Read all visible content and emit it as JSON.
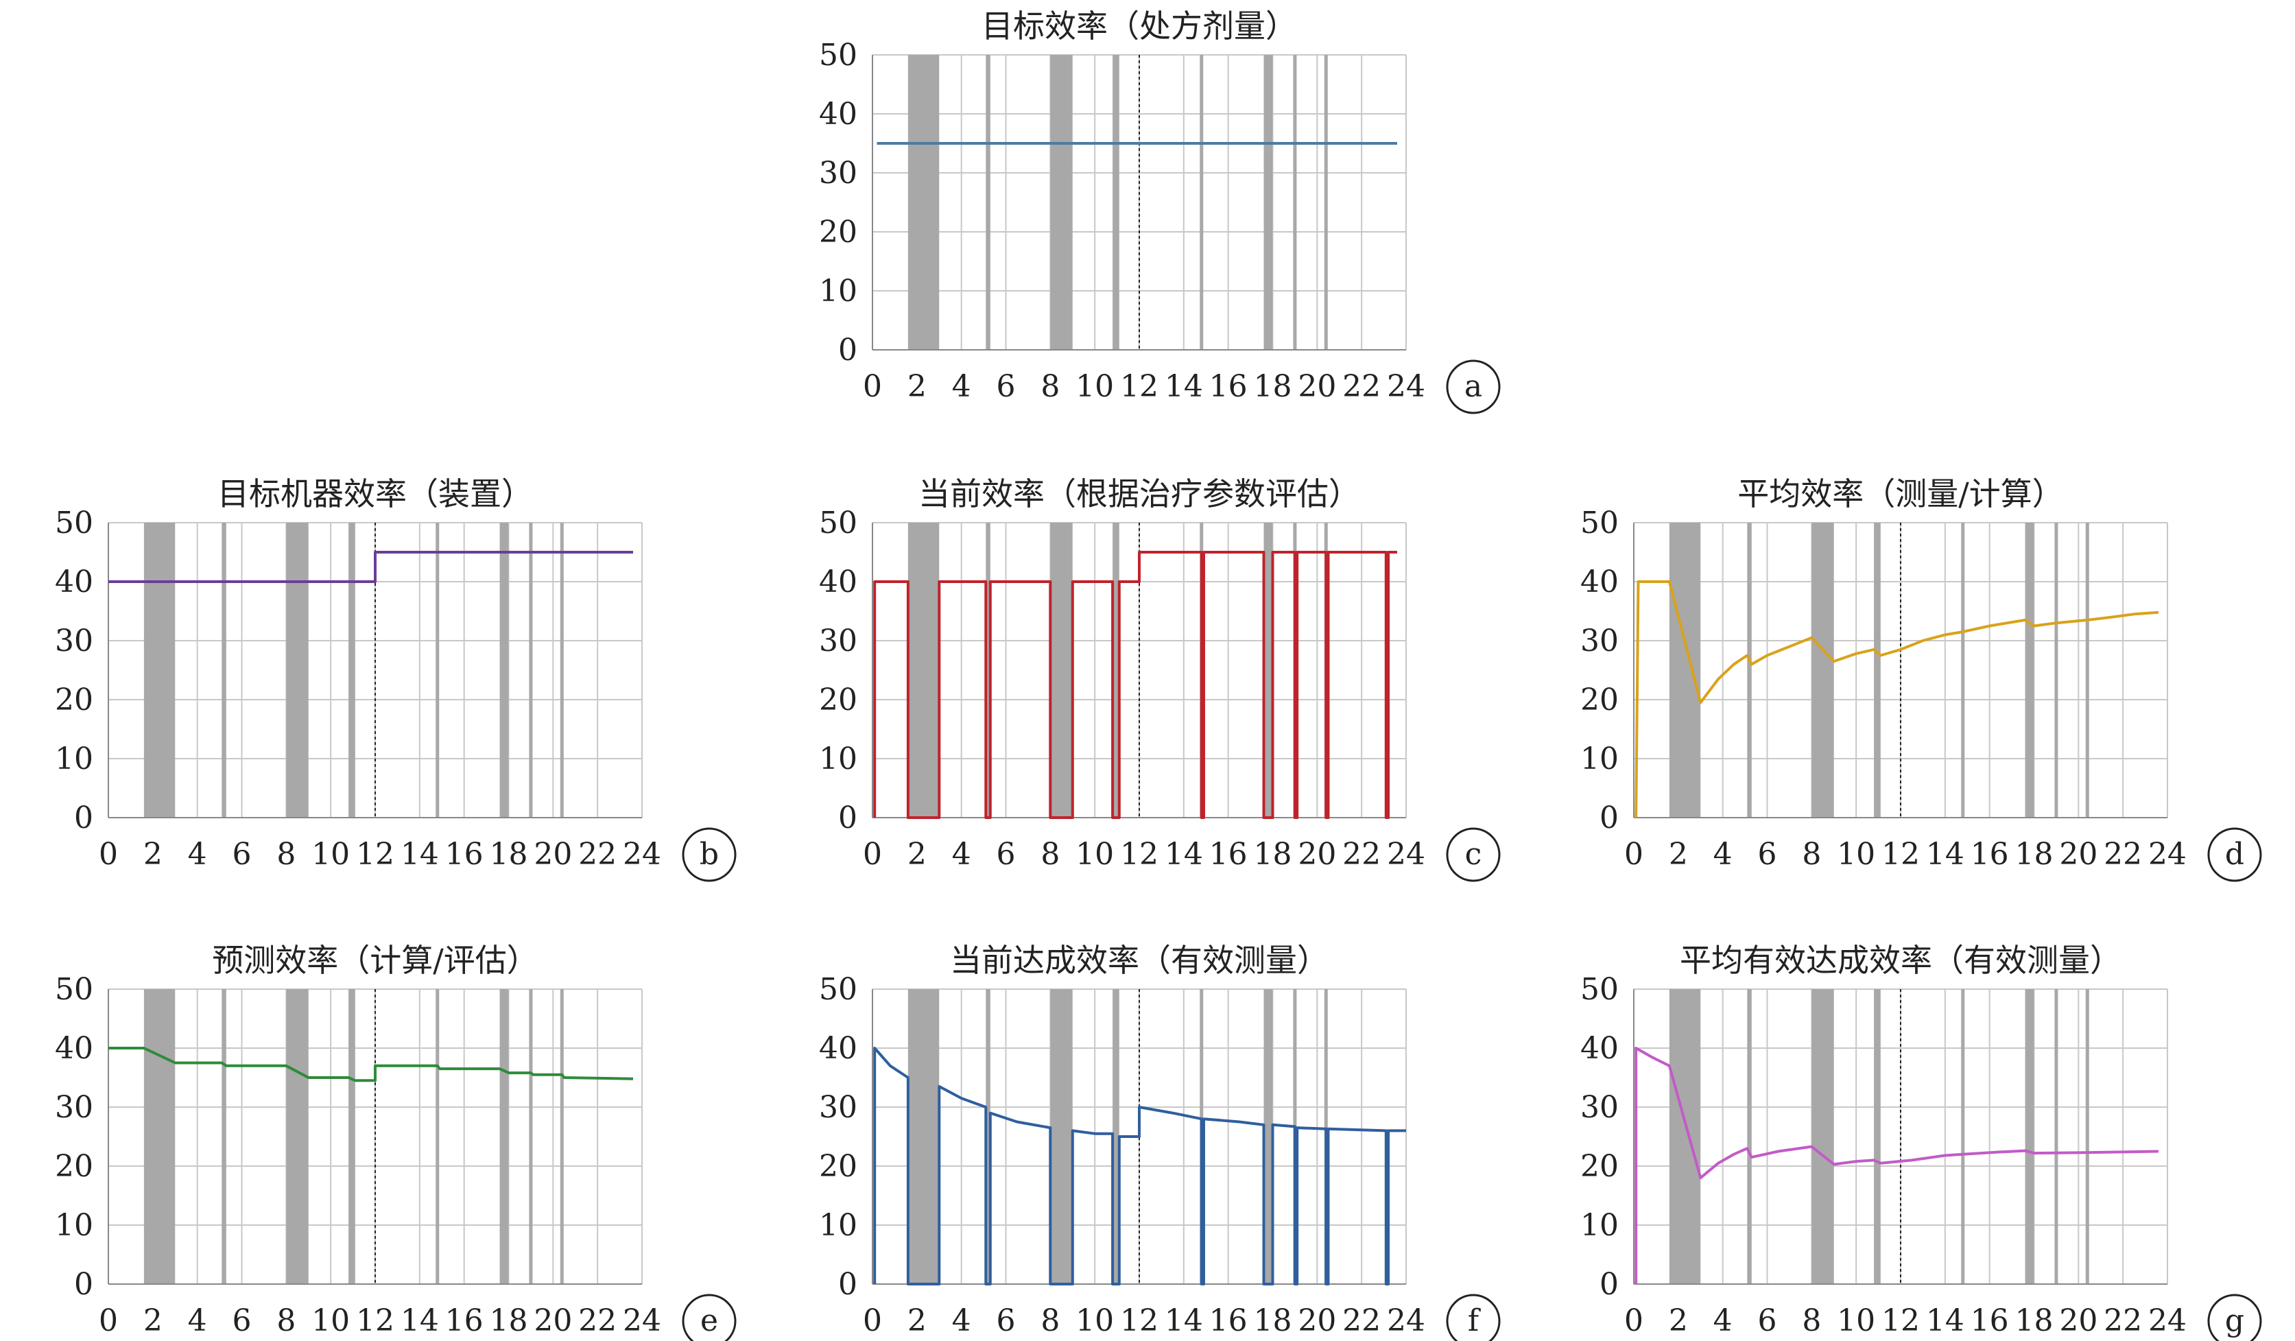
{
  "colors": {
    "grid": "#c8c8c8",
    "shade": "#a8a8a8",
    "axis": "#888888",
    "divider": "#222222"
  },
  "chart_data": [
    {
      "id": "a",
      "type": "line",
      "panel_label": "a",
      "title": "目标效率（处方剂量）",
      "xlim": [
        0,
        24
      ],
      "ylim": [
        0,
        50
      ],
      "xticks": [
        0,
        2,
        4,
        6,
        8,
        10,
        12,
        14,
        16,
        18,
        20,
        22,
        24
      ],
      "yticks": [
        0,
        10,
        20,
        30,
        40,
        50
      ],
      "color": "#4a7ca8",
      "shaded_intervals": [
        [
          1.6,
          3.0
        ],
        [
          5.1,
          5.3
        ],
        [
          8.0,
          9.0
        ],
        [
          10.8,
          11.1
        ],
        [
          17.6,
          18.0
        ]
      ],
      "thin_lines": [
        14.8,
        19.0,
        20.4
      ],
      "divider_x": 12,
      "series": [
        {
          "points": [
            [
              0.2,
              35
            ],
            [
              23.6,
              35
            ]
          ]
        }
      ]
    },
    {
      "id": "b",
      "type": "line",
      "panel_label": "b",
      "title": "目标机器效率（装置）",
      "xlim": [
        0,
        24
      ],
      "ylim": [
        0,
        50
      ],
      "xticks": [
        0,
        2,
        4,
        6,
        8,
        10,
        12,
        14,
        16,
        18,
        20,
        22,
        24
      ],
      "yticks": [
        0,
        10,
        20,
        30,
        40,
        50
      ],
      "color": "#6a3d9a",
      "shaded_intervals": [
        [
          1.6,
          3.0
        ],
        [
          5.1,
          5.3
        ],
        [
          8.0,
          9.0
        ],
        [
          10.8,
          11.1
        ],
        [
          17.6,
          18.0
        ]
      ],
      "thin_lines": [
        14.8,
        19.0,
        20.4
      ],
      "divider_x": 12,
      "series": [
        {
          "points": [
            [
              0,
              40
            ],
            [
              12,
              40
            ],
            [
              12,
              45
            ],
            [
              23.6,
              45
            ]
          ]
        }
      ]
    },
    {
      "id": "c",
      "type": "line",
      "panel_label": "c",
      "title": "当前效率（根据治疗参数评估）",
      "xlim": [
        0,
        24
      ],
      "ylim": [
        0,
        50
      ],
      "xticks": [
        0,
        2,
        4,
        6,
        8,
        10,
        12,
        14,
        16,
        18,
        20,
        22,
        24
      ],
      "yticks": [
        0,
        10,
        20,
        30,
        40,
        50
      ],
      "color": "#c0232c",
      "shaded_intervals": [
        [
          1.6,
          3.0
        ],
        [
          5.1,
          5.3
        ],
        [
          8.0,
          9.0
        ],
        [
          10.8,
          11.1
        ],
        [
          17.6,
          18.0
        ]
      ],
      "thin_lines": [
        14.8,
        19.0,
        20.4
      ],
      "divider_x": 12,
      "series": [
        {
          "points": [
            [
              0.1,
              0
            ],
            [
              0.1,
              40
            ],
            [
              1.6,
              40
            ],
            [
              1.6,
              0
            ],
            [
              3.0,
              0
            ],
            [
              3.0,
              40
            ],
            [
              5.1,
              40
            ],
            [
              5.1,
              0
            ],
            [
              5.3,
              0
            ],
            [
              5.3,
              40
            ],
            [
              8.0,
              40
            ],
            [
              8.0,
              0
            ],
            [
              9.0,
              0
            ],
            [
              9.0,
              40
            ],
            [
              10.8,
              40
            ],
            [
              10.8,
              0
            ],
            [
              11.1,
              0
            ],
            [
              11.1,
              40
            ],
            [
              12,
              40
            ],
            [
              12,
              45
            ],
            [
              14.8,
              45
            ],
            [
              14.8,
              0
            ],
            [
              14.9,
              0
            ],
            [
              14.9,
              45
            ],
            [
              17.6,
              45
            ],
            [
              17.6,
              0
            ],
            [
              18.0,
              0
            ],
            [
              18.0,
              45
            ],
            [
              19.0,
              45
            ],
            [
              19.0,
              0
            ],
            [
              19.1,
              0
            ],
            [
              19.1,
              45
            ],
            [
              20.4,
              45
            ],
            [
              20.4,
              0
            ],
            [
              20.5,
              0
            ],
            [
              20.5,
              45
            ],
            [
              23.1,
              45
            ],
            [
              23.1,
              0
            ],
            [
              23.2,
              0
            ],
            [
              23.2,
              45
            ],
            [
              23.6,
              45
            ]
          ]
        }
      ]
    },
    {
      "id": "d",
      "type": "line",
      "panel_label": "d",
      "title": "平均效率（测量/计算）",
      "xlim": [
        0,
        24
      ],
      "ylim": [
        0,
        50
      ],
      "xticks": [
        0,
        2,
        4,
        6,
        8,
        10,
        12,
        14,
        16,
        18,
        20,
        22,
        24
      ],
      "yticks": [
        0,
        10,
        20,
        30,
        40,
        50
      ],
      "color": "#d9a21b",
      "shaded_intervals": [
        [
          1.6,
          3.0
        ],
        [
          5.1,
          5.3
        ],
        [
          8.0,
          9.0
        ],
        [
          10.8,
          11.1
        ],
        [
          17.6,
          18.0
        ]
      ],
      "thin_lines": [
        14.8,
        19.0,
        20.4
      ],
      "divider_x": 12,
      "series": [
        {
          "points": [
            [
              0.1,
              0
            ],
            [
              0.2,
              40
            ],
            [
              1.6,
              40
            ],
            [
              3.0,
              19.5
            ],
            [
              3.8,
              23.5
            ],
            [
              4.5,
              26
            ],
            [
              5.1,
              27.5
            ],
            [
              5.3,
              26
            ],
            [
              6.0,
              27.5
            ],
            [
              7.0,
              29
            ],
            [
              8.0,
              30.5
            ],
            [
              9.0,
              26.5
            ],
            [
              10.0,
              27.8
            ],
            [
              10.8,
              28.5
            ],
            [
              11.1,
              27.5
            ],
            [
              12,
              28.5
            ],
            [
              13,
              30
            ],
            [
              14,
              31
            ],
            [
              14.8,
              31.5
            ],
            [
              16,
              32.5
            ],
            [
              17.6,
              33.5
            ],
            [
              18.0,
              32.5
            ],
            [
              19,
              33
            ],
            [
              20.4,
              33.5
            ],
            [
              21.5,
              34
            ],
            [
              22.5,
              34.5
            ],
            [
              23.6,
              34.8
            ]
          ]
        }
      ]
    },
    {
      "id": "e",
      "type": "line",
      "panel_label": "e",
      "title": "预测效率（计算/评估）",
      "xlim": [
        0,
        24
      ],
      "ylim": [
        0,
        50
      ],
      "xticks": [
        0,
        2,
        4,
        6,
        8,
        10,
        12,
        14,
        16,
        18,
        20,
        22,
        24
      ],
      "yticks": [
        0,
        10,
        20,
        30,
        40,
        50
      ],
      "color": "#2e8b3a",
      "shaded_intervals": [
        [
          1.6,
          3.0
        ],
        [
          5.1,
          5.3
        ],
        [
          8.0,
          9.0
        ],
        [
          10.8,
          11.1
        ],
        [
          17.6,
          18.0
        ]
      ],
      "thin_lines": [
        14.8,
        19.0,
        20.4
      ],
      "divider_x": 12,
      "series": [
        {
          "points": [
            [
              0,
              40
            ],
            [
              1.6,
              40
            ],
            [
              3.0,
              37.5
            ],
            [
              5.1,
              37.5
            ],
            [
              5.3,
              37
            ],
            [
              8.0,
              37
            ],
            [
              9.0,
              35
            ],
            [
              10.8,
              35
            ],
            [
              11.1,
              34.5
            ],
            [
              12,
              34.5
            ],
            [
              12,
              37
            ],
            [
              14.8,
              37
            ],
            [
              14.9,
              36.5
            ],
            [
              17.6,
              36.5
            ],
            [
              18.0,
              35.8
            ],
            [
              19.0,
              35.8
            ],
            [
              19.1,
              35.5
            ],
            [
              20.4,
              35.5
            ],
            [
              20.5,
              35
            ],
            [
              23.6,
              34.8
            ]
          ]
        }
      ]
    },
    {
      "id": "f",
      "type": "line",
      "panel_label": "f",
      "title": "当前达成效率（有效测量）",
      "xlim": [
        0,
        24
      ],
      "ylim": [
        0,
        50
      ],
      "xticks": [
        0,
        2,
        4,
        6,
        8,
        10,
        12,
        14,
        16,
        18,
        20,
        22,
        24
      ],
      "yticks": [
        0,
        10,
        20,
        30,
        40,
        50
      ],
      "color": "#2f5f9e",
      "shaded_intervals": [
        [
          1.6,
          3.0
        ],
        [
          5.1,
          5.3
        ],
        [
          8.0,
          9.0
        ],
        [
          10.8,
          11.1
        ],
        [
          17.6,
          18.0
        ]
      ],
      "thin_lines": [
        14.8,
        19.0,
        20.4
      ],
      "divider_x": 12,
      "series": [
        {
          "points": [
            [
              0.1,
              0
            ],
            [
              0.1,
              40
            ],
            [
              0.8,
              37
            ],
            [
              1.6,
              35
            ],
            [
              1.6,
              0
            ],
            [
              3.0,
              0
            ],
            [
              3.0,
              33.5
            ],
            [
              4.0,
              31.5
            ],
            [
              5.1,
              30
            ],
            [
              5.1,
              0
            ],
            [
              5.3,
              0
            ],
            [
              5.3,
              29
            ],
            [
              6.5,
              27.5
            ],
            [
              8.0,
              26.5
            ],
            [
              8.0,
              0
            ],
            [
              9.0,
              0
            ],
            [
              9.0,
              26
            ],
            [
              10.0,
              25.5
            ],
            [
              10.8,
              25.5
            ],
            [
              10.8,
              0
            ],
            [
              11.1,
              0
            ],
            [
              11.1,
              25
            ],
            [
              12,
              25
            ],
            [
              12,
              30
            ],
            [
              13.5,
              29
            ],
            [
              14.8,
              28
            ],
            [
              14.8,
              0
            ],
            [
              14.9,
              0
            ],
            [
              14.9,
              28
            ],
            [
              16.5,
              27.5
            ],
            [
              17.6,
              27
            ],
            [
              17.6,
              0
            ],
            [
              18.0,
              0
            ],
            [
              18.0,
              27
            ],
            [
              19.0,
              26.7
            ],
            [
              19.0,
              0
            ],
            [
              19.1,
              0
            ],
            [
              19.1,
              26.5
            ],
            [
              20.4,
              26.3
            ],
            [
              20.4,
              0
            ],
            [
              20.5,
              0
            ],
            [
              20.5,
              26.3
            ],
            [
              23.1,
              26
            ],
            [
              23.1,
              0
            ],
            [
              23.2,
              0
            ],
            [
              23.2,
              26
            ],
            [
              24,
              26
            ]
          ]
        }
      ]
    },
    {
      "id": "g",
      "type": "line",
      "panel_label": "g",
      "title": "平均有效达成效率（有效测量）",
      "xlim": [
        0,
        24
      ],
      "ylim": [
        0,
        50
      ],
      "xticks": [
        0,
        2,
        4,
        6,
        8,
        10,
        12,
        14,
        16,
        18,
        20,
        22,
        24
      ],
      "yticks": [
        0,
        10,
        20,
        30,
        40,
        50
      ],
      "color": "#c25bc7",
      "shaded_intervals": [
        [
          1.6,
          3.0
        ],
        [
          5.1,
          5.3
        ],
        [
          8.0,
          9.0
        ],
        [
          10.8,
          11.1
        ],
        [
          17.6,
          18.0
        ]
      ],
      "thin_lines": [
        14.8,
        19.0,
        20.4
      ],
      "divider_x": 12,
      "series": [
        {
          "points": [
            [
              0.1,
              0
            ],
            [
              0.1,
              40
            ],
            [
              0.8,
              38.5
            ],
            [
              1.6,
              37
            ],
            [
              3.0,
              18
            ],
            [
              3.8,
              20.5
            ],
            [
              4.5,
              22
            ],
            [
              5.1,
              23
            ],
            [
              5.3,
              21.5
            ],
            [
              6.5,
              22.5
            ],
            [
              8.0,
              23.3
            ],
            [
              9.0,
              20.3
            ],
            [
              10.0,
              20.8
            ],
            [
              10.8,
              21
            ],
            [
              11.1,
              20.5
            ],
            [
              12.5,
              21
            ],
            [
              14,
              21.8
            ],
            [
              14.8,
              22
            ],
            [
              16.5,
              22.4
            ],
            [
              17.6,
              22.6
            ],
            [
              18.0,
              22.2
            ],
            [
              20.4,
              22.3
            ],
            [
              22,
              22.4
            ],
            [
              23.6,
              22.5
            ]
          ]
        }
      ]
    }
  ]
}
